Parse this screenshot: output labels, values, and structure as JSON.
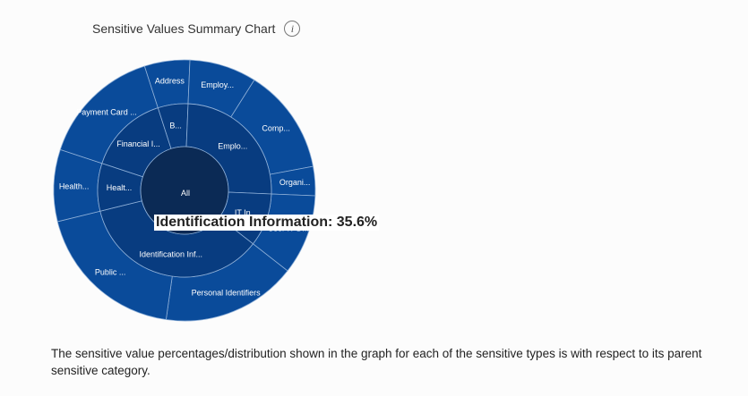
{
  "header": {
    "title": "Sensitive Values Summary Chart",
    "info_icon": "info-icon",
    "info_glyph": "i"
  },
  "chart_data": {
    "type": "sunburst",
    "center": {
      "label": "All"
    },
    "colors": {
      "center": "#0b2a55",
      "inner": "#083c80",
      "outer": "#0a4b9a",
      "stroke": "#8fb0d8"
    },
    "inner_ring": [
      {
        "label": "Identification Inf...",
        "value": 35.6,
        "start": 128
      },
      {
        "label": "Healt...",
        "value": 8.9
      },
      {
        "label": "Financial I...",
        "value": 15.0
      },
      {
        "label": "B...",
        "value": 5.6
      },
      {
        "label": "Emplo...",
        "value": 25.0
      },
      {
        "label": "IT In...",
        "value": 9.9
      }
    ],
    "outer_ring": [
      {
        "label": "Personal Identifiers",
        "value": 16.7,
        "start": 128
      },
      {
        "label": "Public ...",
        "value": 18.9
      },
      {
        "label": "Health...",
        "value": 8.9
      },
      {
        "label": "Payment Card ...",
        "value": 15.0
      },
      {
        "label": "Address",
        "value": 5.6
      },
      {
        "label": "Employ...",
        "value": 8.3
      },
      {
        "label": "Comp...",
        "value": 13.1
      },
      {
        "label": "Organi...",
        "value": 3.6
      },
      {
        "label": "User IT D...",
        "value": 9.9
      }
    ],
    "tooltip": "Identification Information: 35.6%"
  },
  "footnote": "The sensitive value percentages/distribution shown in the graph for each of the sensitive types is with respect to its parent sensitive category."
}
